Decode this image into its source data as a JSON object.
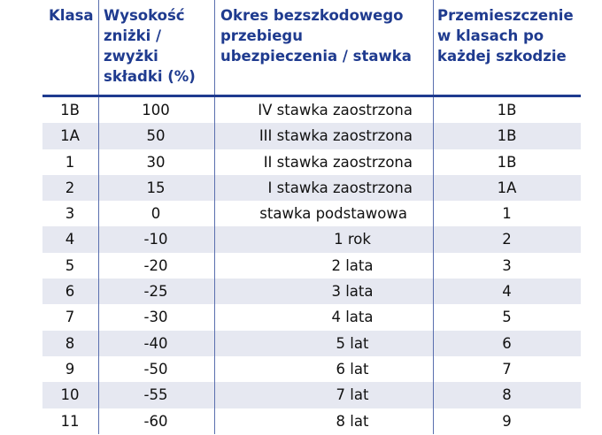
{
  "table": {
    "headers": [
      [
        "Klasa"
      ],
      [
        "Wysokość",
        "zniżki /",
        "zwyżki",
        "składki (%)"
      ],
      [
        "Okres bezszkodowego",
        "przebiegu",
        "ubezpieczenia / stawka"
      ],
      [
        "Przemieszczenie",
        "w klasach po",
        "każdej szkodzie"
      ]
    ],
    "rows": [
      [
        "1B",
        "100",
        "IV stawka zaostrzona",
        "1B"
      ],
      [
        "1A",
        "50",
        "III stawka zaostrzona",
        "1B"
      ],
      [
        "1",
        "30",
        "II stawka zaostrzona",
        "1B"
      ],
      [
        "2",
        "15",
        "I stawka zaostrzona",
        "1A"
      ],
      [
        "3",
        "0",
        "stawka podstawowa",
        "1"
      ],
      [
        "4",
        "-10",
        "1 rok",
        "2"
      ],
      [
        "5",
        "-20",
        "2 lata",
        "3"
      ],
      [
        "6",
        "-25",
        "3 lata",
        "4"
      ],
      [
        "7",
        "-30",
        "4 lata",
        "5"
      ],
      [
        "8",
        "-40",
        "5 lat",
        "6"
      ],
      [
        "9",
        "-50",
        "6 lat",
        "7"
      ],
      [
        "10",
        "-55",
        "7 lat",
        "8"
      ],
      [
        "11",
        "-60",
        "8 lat",
        "9"
      ]
    ]
  }
}
